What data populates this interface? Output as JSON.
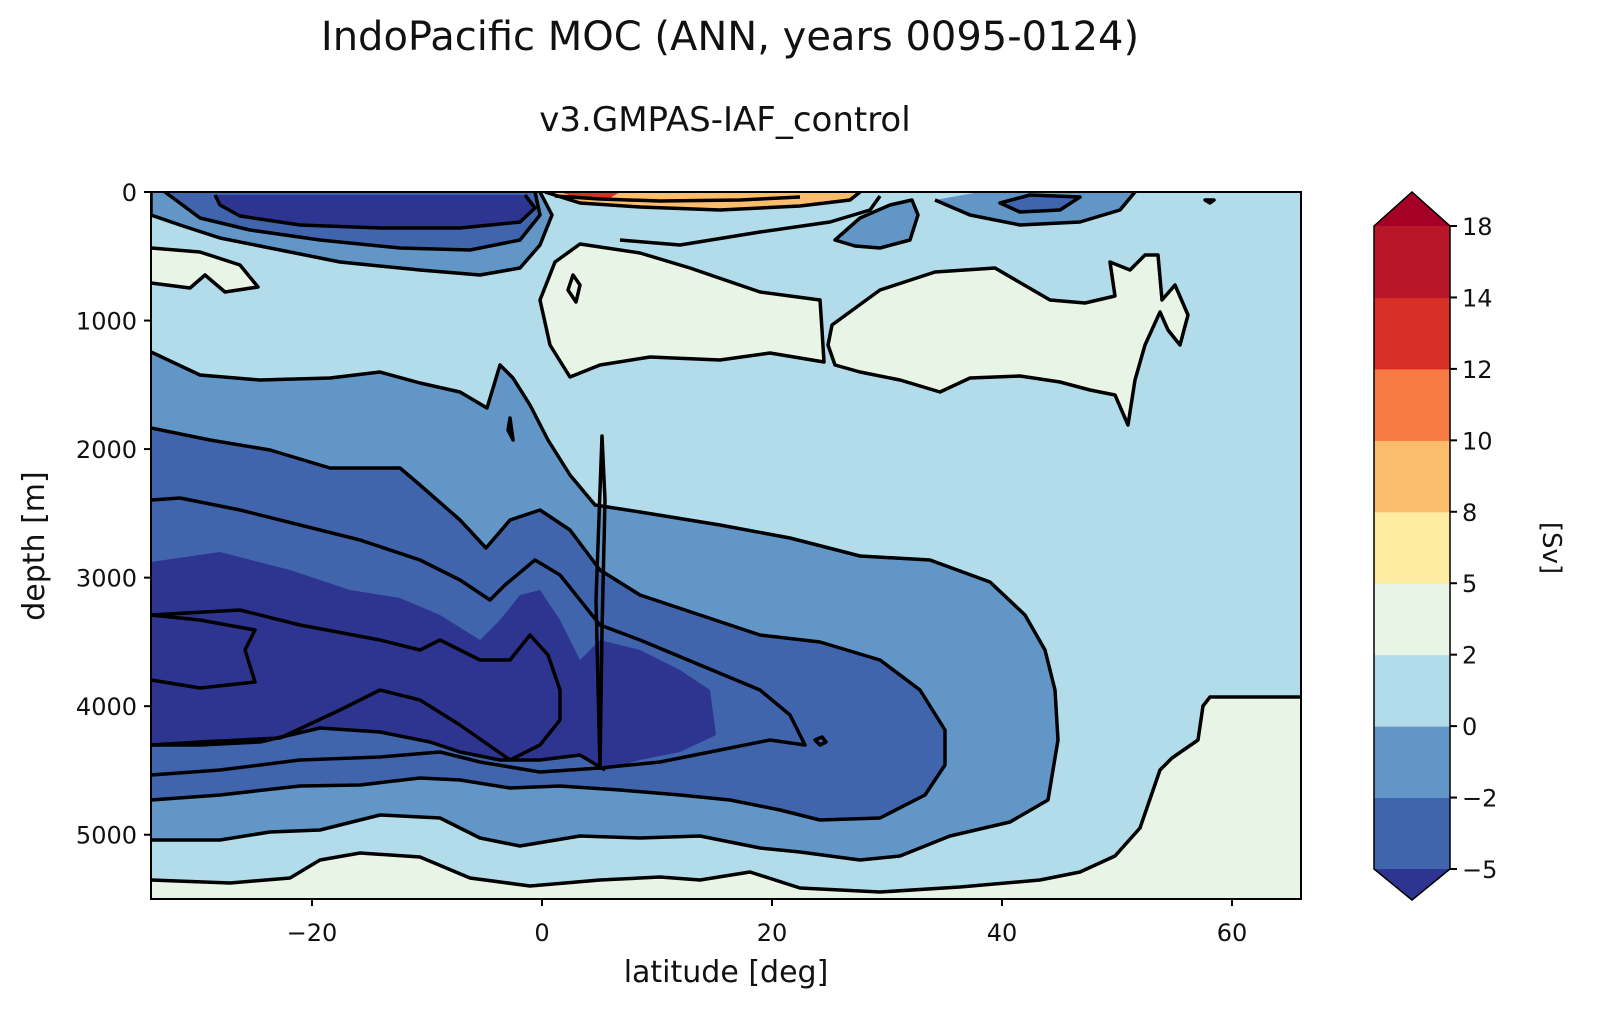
{
  "chart_data": {
    "type": "contourf",
    "title": "IndoPacific MOC (ANN, years 0095-0124)",
    "subtitle": "v3.GMPAS-IAF_control",
    "xlabel": "latitude [deg]",
    "ylabel": "depth [m]",
    "xlim": [
      -34,
      66
    ],
    "ylim": [
      5500,
      0
    ],
    "x_ticks": [
      -20,
      0,
      20,
      40,
      60
    ],
    "x_tick_labels": [
      "−20",
      "0",
      "20",
      "40",
      "60"
    ],
    "y_ticks": [
      0,
      1000,
      2000,
      3000,
      4000,
      5000
    ],
    "y_tick_labels": [
      "0",
      "1000",
      "2000",
      "3000",
      "4000",
      "5000"
    ],
    "colorbar": {
      "label": "[Sv]",
      "levels": [
        -5,
        -2,
        0,
        2,
        5,
        8,
        10,
        12,
        14,
        18
      ],
      "tick_labels": [
        "−5",
        "−2",
        "0",
        "2",
        "5",
        "8",
        "10",
        "12",
        "14",
        "18"
      ],
      "colors": [
        "#4065ad",
        "#6196c6",
        "#b3dcea",
        "#e8f4e5",
        "#fdeca2",
        "#fbbd6c",
        "#f57a44",
        "#d73127",
        "#b8172a"
      ],
      "under_color": "#2d3590",
      "over_color": "#a50026"
    }
  }
}
